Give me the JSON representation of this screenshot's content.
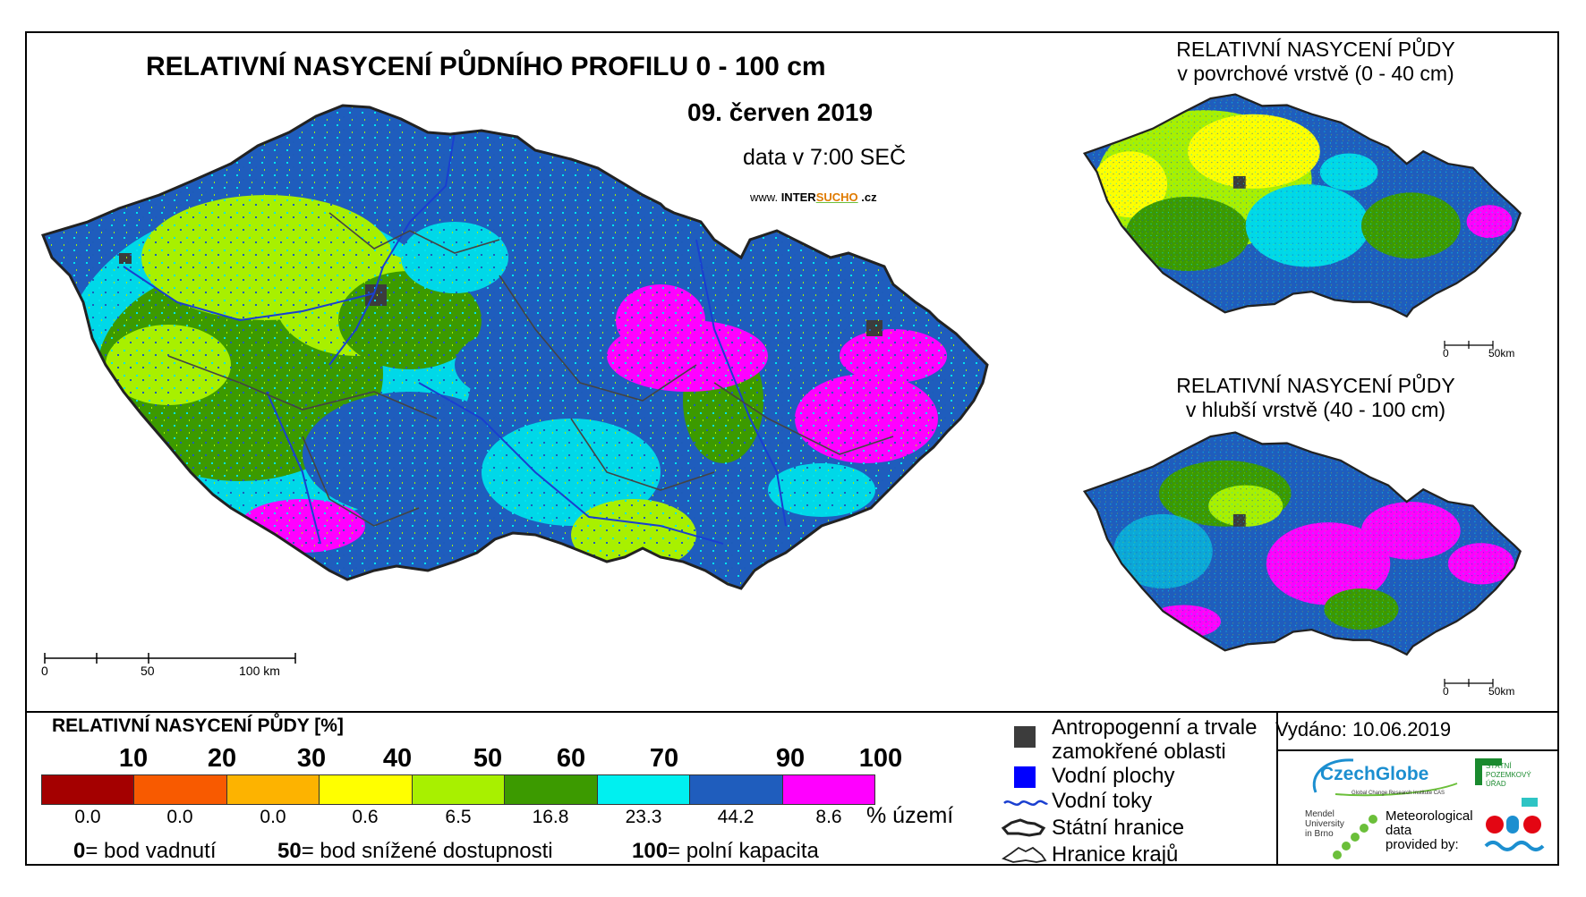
{
  "header": {
    "title": "RELATIVNÍ NASYCENÍ PŮDNÍHO PROFILU 0 - 100 cm",
    "date": "09. červen 2019",
    "data_time": "data v 7:00 SEČ",
    "web_prefix": "www.",
    "web_brand_1": "INTER",
    "web_brand_2": "SUCHO",
    "web_suffix": ".cz"
  },
  "side_maps": {
    "top_title_1": "RELATIVNÍ NASYCENÍ PŮDY",
    "top_title_2": "v povrchové vrstvě (0 - 40 cm)",
    "bottom_title_1": "RELATIVNÍ NASYCENÍ PŮDY",
    "bottom_title_2": "v hlubší vrstvě (40 - 100 cm)",
    "scale_zero": "0",
    "scale_km": "50km"
  },
  "main_scale": {
    "labels": [
      "0",
      "50",
      "100 km"
    ]
  },
  "legend": {
    "title": "RELATIVNÍ NASYCENÍ PŮDY [%]",
    "ticks": [
      "10",
      "20",
      "30",
      "40",
      "50",
      "60",
      "70",
      "90",
      "100"
    ],
    "classes": [
      {
        "color": "#a40000",
        "area_pct": "0.0"
      },
      {
        "color": "#f85a00",
        "area_pct": "0.0"
      },
      {
        "color": "#fdb300",
        "area_pct": "0.0"
      },
      {
        "color": "#ffff00",
        "area_pct": "0.6"
      },
      {
        "color": "#a8f000",
        "area_pct": "6.5"
      },
      {
        "color": "#3c9a00",
        "area_pct": "16.8"
      },
      {
        "color": "#00f0f0",
        "area_pct": "23.3"
      },
      {
        "color": "#1f5dbd",
        "area_pct": "44.2"
      },
      {
        "color": "#ff00ff",
        "area_pct": "8.6"
      }
    ],
    "unit": "% území",
    "def_0_num": "0",
    "def_0_txt": "= bod vadnutí",
    "def_50_num": "50",
    "def_50_txt": "= bod snížené dostupnosti",
    "def_100_num": "100",
    "def_100_txt": "= polní kapacita"
  },
  "symbols": {
    "anthropogenic_1": "Antropogenní a trvale",
    "anthropogenic_2": "zamokřené oblasti",
    "water_areas": "Vodní plochy",
    "rivers": "Vodní toky",
    "state_border": "Státní hranice",
    "regions_border": "Hranice krajů",
    "anthro_color": "#3c3c3c",
    "water_color": "#0000ff"
  },
  "footer": {
    "issued": "Vydáno: 10.06.2019",
    "czechglobe": "CzechGlobe",
    "czechglobe_sub": "Global Change Research Institute CAS",
    "spu_1": "STÁTNÍ",
    "spu_2": "POZEMKOVÝ",
    "spu_3": "ÚŘAD",
    "mendel_1": "Mendel",
    "mendel_2": "University",
    "mendel_3": "in Brno",
    "met_1": "Meteorological",
    "met_2": "data",
    "met_3": "provided by:"
  }
}
